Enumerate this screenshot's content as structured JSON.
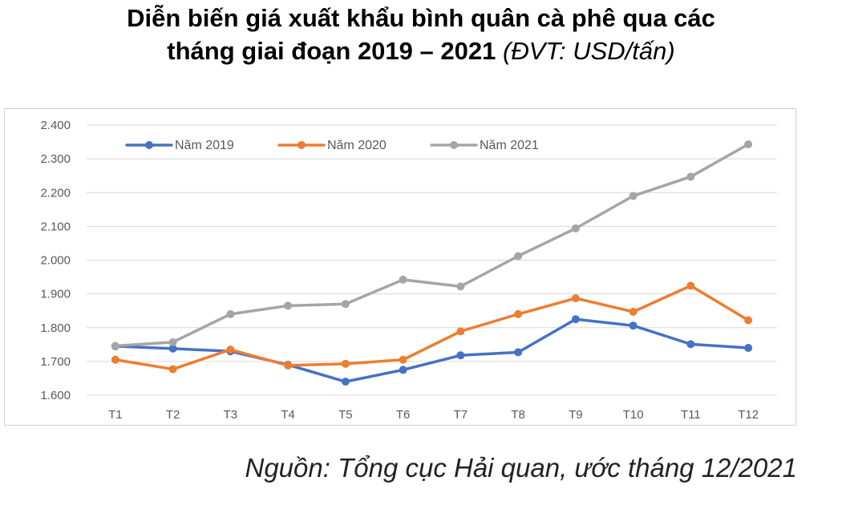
{
  "title": {
    "line1": "Diễn biến giá xuất khẩu bình quân cà phê qua các",
    "line2": "tháng giai đoạn 2019 – 2021",
    "unit": "(ĐVT: USD/tấn)"
  },
  "source": "Nguồn: Tổng cục Hải quan, ước tháng 12/2021",
  "chart_data": {
    "type": "line",
    "title": "Diễn biến giá xuất khẩu bình quân cà phê qua các tháng giai đoạn 2019 – 2021 (ĐVT: USD/tấn)",
    "xlabel": "",
    "ylabel": "",
    "categories": [
      "T1",
      "T2",
      "T3",
      "T4",
      "T5",
      "T6",
      "T7",
      "T8",
      "T9",
      "T10",
      "T11",
      "T12"
    ],
    "ylim": [
      1600,
      2400
    ],
    "yticks": [
      1600,
      1700,
      1800,
      1900,
      2000,
      2100,
      2200,
      2300,
      2400
    ],
    "ytick_labels": [
      "1.600",
      "1.700",
      "1.800",
      "1.900",
      "2.000",
      "2.100",
      "2.200",
      "2.300",
      "2.400"
    ],
    "grid": true,
    "legend_position": "top-left",
    "series": [
      {
        "name": "Năm 2019",
        "color": "#4472c4",
        "values": [
          1745,
          1738,
          1730,
          1690,
          1640,
          1675,
          1718,
          1727,
          1825,
          1806,
          1751,
          1740
        ]
      },
      {
        "name": "Năm 2020",
        "color": "#ed7d31",
        "values": [
          1705,
          1677,
          1735,
          1688,
          1693,
          1705,
          1789,
          1840,
          1887,
          1847,
          1924,
          1822
        ]
      },
      {
        "name": "Năm 2021",
        "color": "#a5a5a5",
        "values": [
          1746,
          1757,
          1840,
          1865,
          1870,
          1942,
          1922,
          2012,
          2094,
          2190,
          2247,
          2343
        ]
      }
    ]
  }
}
